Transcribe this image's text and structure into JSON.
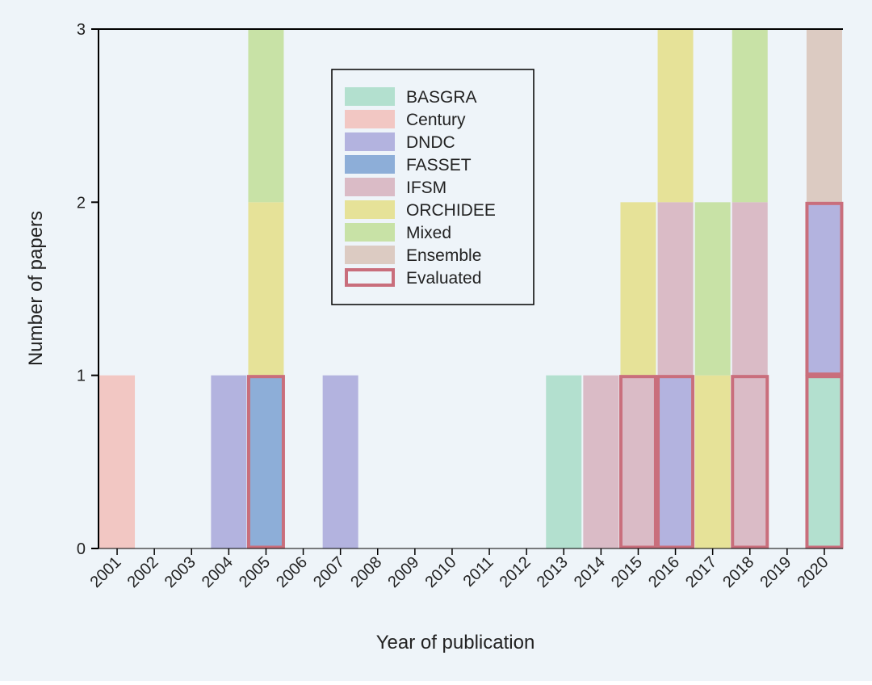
{
  "chart_data": {
    "type": "bar",
    "stacked": true,
    "title": "",
    "xlabel": "Year of publication",
    "ylabel": "Number of papers",
    "ylim": [
      0,
      3
    ],
    "yticks": [
      "0",
      "1",
      "2",
      "3"
    ],
    "categories": [
      "2001",
      "2002",
      "2003",
      "2004",
      "2005",
      "2006",
      "2007",
      "2008",
      "2009",
      "2010",
      "2011",
      "2012",
      "2013",
      "2014",
      "2015",
      "2016",
      "2017",
      "2018",
      "2019",
      "2020"
    ],
    "series": [
      {
        "name": "BASGRA",
        "color": "#b3e0cf",
        "values": [
          0,
          0,
          0,
          0,
          0,
          0,
          0,
          0,
          0,
          0,
          0,
          0,
          1,
          0,
          0,
          0,
          0,
          0,
          0,
          1
        ]
      },
      {
        "name": "Century",
        "color": "#f2c7c3",
        "values": [
          1,
          0,
          0,
          0,
          0,
          0,
          0,
          0,
          0,
          0,
          0,
          0,
          0,
          0,
          0,
          0,
          0,
          0,
          0,
          0
        ]
      },
      {
        "name": "DNDC",
        "color": "#b3b3df",
        "values": [
          0,
          0,
          0,
          1,
          0,
          0,
          1,
          0,
          0,
          0,
          0,
          0,
          0,
          0,
          0,
          1,
          0,
          0,
          0,
          1
        ]
      },
      {
        "name": "FASSET",
        "color": "#8daed8",
        "values": [
          0,
          0,
          0,
          0,
          1,
          0,
          0,
          0,
          0,
          0,
          0,
          0,
          0,
          0,
          0,
          0,
          0,
          0,
          0,
          0
        ]
      },
      {
        "name": "IFSM",
        "color": "#dabbc6",
        "values": [
          0,
          0,
          0,
          0,
          0,
          0,
          0,
          0,
          0,
          0,
          0,
          0,
          0,
          1,
          1,
          1,
          0,
          2,
          0,
          0
        ]
      },
      {
        "name": "ORCHIDEE",
        "color": "#e6e298",
        "values": [
          0,
          0,
          0,
          0,
          1,
          0,
          0,
          0,
          0,
          0,
          0,
          0,
          0,
          0,
          1,
          1,
          1,
          0,
          0,
          0
        ]
      },
      {
        "name": "Mixed",
        "color": "#c8e2a6",
        "values": [
          0,
          0,
          0,
          0,
          1,
          0,
          0,
          0,
          0,
          0,
          0,
          0,
          0,
          0,
          0,
          0,
          1,
          1,
          0,
          0
        ]
      },
      {
        "name": "Ensemble",
        "color": "#dccbc2",
        "values": [
          0,
          0,
          0,
          0,
          0,
          0,
          0,
          0,
          0,
          0,
          0,
          0,
          0,
          0,
          0,
          0,
          0,
          0,
          0,
          1
        ]
      }
    ],
    "evaluated": {
      "name": "Evaluated",
      "color": "#c96e7c",
      "segments": [
        {
          "category": "2005",
          "from": 0,
          "to": 1
        },
        {
          "category": "2015",
          "from": 0,
          "to": 1
        },
        {
          "category": "2016",
          "from": 0,
          "to": 1
        },
        {
          "category": "2018",
          "from": 0,
          "to": 1
        },
        {
          "category": "2020",
          "from": 0,
          "to": 1
        },
        {
          "category": "2020",
          "from": 1,
          "to": 2
        }
      ]
    },
    "legend_position": "top-center",
    "grid": false
  }
}
